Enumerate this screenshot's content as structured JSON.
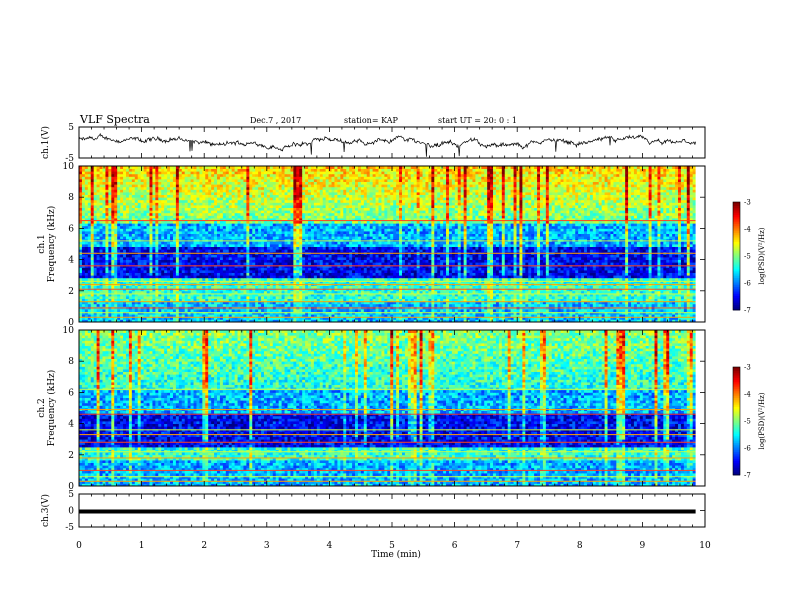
{
  "header": {
    "title": "VLF Spectra",
    "date": "Dec.7 , 2017",
    "station": "station= KAP",
    "start": "start  UT =   20: 0  : 1"
  },
  "chart_data": [
    {
      "type": "line",
      "ylabel": "ch.1(V)",
      "ylim": [
        -5,
        5
      ],
      "yticks": [
        "5",
        "-5"
      ],
      "xlim": [
        0,
        10
      ],
      "data_end_min": 9.85,
      "series_color": "#000000",
      "description_level": 2
    },
    {
      "type": "heatmap",
      "ylabel": [
        "ch.1",
        "Frequency  (kHz)"
      ],
      "ylim": [
        0,
        10
      ],
      "yticks": [
        "0",
        "2",
        "4",
        "6",
        "8",
        "10"
      ],
      "xlim": [
        0,
        10
      ],
      "data_end_min": 9.85,
      "colorbar": {
        "label": "log(PSD)(V²/Hz)",
        "range": [
          -7,
          -3
        ],
        "ticks": [
          "-3",
          "-4",
          "-5",
          "-6",
          "-7"
        ]
      },
      "bands_khz": [
        0.3,
        0.6,
        0.9,
        1.3,
        1.8,
        2.1,
        2.4,
        2.6,
        3.6,
        4.4,
        5.2,
        6.5
      ]
    },
    {
      "type": "heatmap",
      "ylabel": [
        "ch.2",
        "Frequency  (kHz)"
      ],
      "ylim": [
        0,
        10
      ],
      "yticks": [
        "0",
        "2",
        "4",
        "6",
        "8",
        "10"
      ],
      "xlim": [
        0,
        10
      ],
      "data_end_min": 9.85,
      "colorbar": {
        "label": "log(PSD)(V²/Hz)",
        "range": [
          -7,
          -3
        ],
        "ticks": [
          "-3",
          "-4",
          "-5",
          "-6",
          "-7"
        ]
      },
      "bands_khz": [
        0.3,
        0.6,
        1.0,
        1.8,
        2.2,
        2.8,
        3.3,
        3.6,
        4.6,
        4.9,
        6.2
      ]
    },
    {
      "type": "line",
      "ylabel": "ch.3(V)",
      "ylim": [
        -5,
        5
      ],
      "yticks": [
        "5",
        "0",
        "-5"
      ],
      "xlim": [
        0,
        10
      ],
      "data_end_min": 9.85,
      "constant_value": 0,
      "series_color": "#000000"
    }
  ],
  "xaxis": {
    "label": "Time  (min)",
    "ticks": [
      "0",
      "1",
      "2",
      "3",
      "4",
      "5",
      "6",
      "7",
      "8",
      "9",
      "10"
    ]
  },
  "colors": {
    "spec_low": "#00008b",
    "spec_mid": "#00ffff",
    "spec_high": "#ff0000"
  }
}
